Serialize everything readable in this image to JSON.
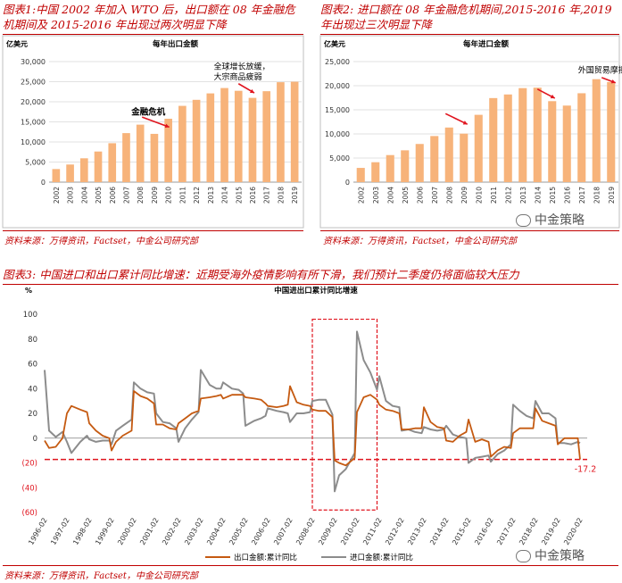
{
  "panels": {
    "p1": {
      "title": "图表1:中国 2002 年加入 WTO 后，出口额在 08 年金融危机期间及 2015-2016 年出现过两次明显下降",
      "title_line1": "图表1:中国 2002 年加入 WTO 后，出口额在 08 年金融危",
      "title_line2": "机期间及 2015-2016 年出现过两次明显下降",
      "source": "资料来源：万得资讯，Factset，中金公司研究部"
    },
    "p2": {
      "title_line1": "图表2: 进口额在 08 年金融危机期间,2015-2016 年,2019",
      "title_line2": "年出现过三次明显下降",
      "source": "资料来源：万得资讯，Factset，中金公司研究部"
    },
    "p3": {
      "title": "图表3: 中国进口和出口累计同比增速：近期受海外疫情影响有所下滑，我们预计二季度仍将面临较大压力",
      "source": "资料来源：万得资讯，Factset，中金公司研究部"
    }
  },
  "watermark": "中金策略",
  "colors": {
    "bar": "#f7b37a",
    "export_line": "#c55a11",
    "import_line": "#8c8c8c",
    "accent_red": "#e0141e",
    "title_red": "#c00000"
  },
  "chart_data": [
    {
      "type": "bar",
      "title": "每年出口金额",
      "ylabel": "亿美元",
      "categories": [
        "2002",
        "2003",
        "2004",
        "2005",
        "2006",
        "2007",
        "2008",
        "2009",
        "2010",
        "2011",
        "2012",
        "2013",
        "2014",
        "2015",
        "2016",
        "2017",
        "2018",
        "2019"
      ],
      "values": [
        3256,
        4382,
        5933,
        7620,
        9689,
        12200,
        14307,
        12016,
        15778,
        18984,
        20487,
        22090,
        23423,
        22735,
        20976,
        22634,
        24867,
        24990
      ],
      "ylim": [
        0,
        30000
      ],
      "yticks": [
        "0",
        "5,000",
        "10,000",
        "15,000",
        "20,000",
        "25,000",
        "30,000"
      ],
      "grid": true,
      "annotations": [
        {
          "text": "金融危机",
          "x": "2009"
        },
        {
          "text": "全球增长放缓，",
          "x": "2016"
        },
        {
          "text": "大宗商品疲弱",
          "x": "2016"
        }
      ]
    },
    {
      "type": "bar",
      "title": "每年进口金额",
      "ylabel": "亿美元",
      "categories": [
        "2002",
        "2003",
        "2004",
        "2005",
        "2006",
        "2007",
        "2008",
        "2009",
        "2010",
        "2011",
        "2012",
        "2013",
        "2014",
        "2015",
        "2016",
        "2017",
        "2018",
        "2019"
      ],
      "values": [
        2952,
        4128,
        5612,
        6600,
        7915,
        9561,
        11326,
        10059,
        13962,
        17435,
        18184,
        19500,
        19592,
        16796,
        15879,
        18438,
        21356,
        20769
      ],
      "ylim": [
        0,
        25000
      ],
      "yticks": [
        "0",
        "5,000",
        "10,000",
        "15,000",
        "20,000",
        "25,000"
      ],
      "grid": true,
      "annotations": [
        {
          "text": "外国贸易摩擦",
          "x": "2019"
        }
      ]
    },
    {
      "type": "line",
      "title": "中国进出口累计同比增速",
      "ylabel": "%",
      "ylim": [
        -60,
        100
      ],
      "yticks": [
        "100",
        "80",
        "60",
        "40",
        "20",
        "0",
        "(20)",
        "(40)",
        "(60)"
      ],
      "x_labels": [
        "1996-02",
        "1997-02",
        "1998-02",
        "1999-02",
        "2000-02",
        "2001-02",
        "2002-02",
        "2003-02",
        "2004-02",
        "2005-02",
        "2006-02",
        "2007-02",
        "2008-02",
        "2009-02",
        "2010-02",
        "2011-02",
        "2012-02",
        "2013-02",
        "2014-02",
        "2015-02",
        "2016-02",
        "2017-02",
        "2018-02",
        "2019-02",
        "2020-02"
      ],
      "x_start_year": 1996,
      "reference_line": -17.2,
      "reference_label": "-17.2",
      "series": [
        {
          "name": "出口金额:累计同比",
          "points": [
            [
              1996.0,
              -2
            ],
            [
              1996.2,
              -8
            ],
            [
              1996.5,
              -7
            ],
            [
              1996.8,
              0
            ],
            [
              1997.0,
              20
            ],
            [
              1997.2,
              26
            ],
            [
              1997.6,
              23
            ],
            [
              1997.9,
              21
            ],
            [
              1998.0,
              12
            ],
            [
              1998.3,
              6
            ],
            [
              1998.6,
              2
            ],
            [
              1998.9,
              0
            ],
            [
              1999.0,
              -10
            ],
            [
              1999.2,
              -3
            ],
            [
              1999.5,
              2
            ],
            [
              1999.9,
              6
            ],
            [
              2000.0,
              38
            ],
            [
              2000.3,
              34
            ],
            [
              2000.6,
              32
            ],
            [
              2000.9,
              28
            ],
            [
              2001.0,
              11
            ],
            [
              2001.3,
              11
            ],
            [
              2001.6,
              8
            ],
            [
              2001.9,
              7
            ],
            [
              2002.0,
              12
            ],
            [
              2002.3,
              16
            ],
            [
              2002.6,
              20
            ],
            [
              2002.9,
              22
            ],
            [
              2003.0,
              32
            ],
            [
              2003.4,
              33
            ],
            [
              2003.7,
              34
            ],
            [
              2003.9,
              35
            ],
            [
              2004.0,
              32
            ],
            [
              2004.4,
              35
            ],
            [
              2004.7,
              35
            ],
            [
              2004.9,
              35
            ],
            [
              2005.0,
              33
            ],
            [
              2005.4,
              32
            ],
            [
              2005.7,
              31
            ],
            [
              2005.9,
              28
            ],
            [
              2006.0,
              26
            ],
            [
              2006.4,
              25
            ],
            [
              2006.7,
              26
            ],
            [
              2006.9,
              27
            ],
            [
              2007.0,
              42
            ],
            [
              2007.3,
              29
            ],
            [
              2007.6,
              27
            ],
            [
              2007.9,
              26
            ],
            [
              2008.0,
              23
            ],
            [
              2008.3,
              22
            ],
            [
              2008.6,
              22
            ],
            [
              2008.9,
              17
            ],
            [
              2009.0,
              -18
            ],
            [
              2009.2,
              -20
            ],
            [
              2009.5,
              -22
            ],
            [
              2009.9,
              -16
            ],
            [
              2010.0,
              21
            ],
            [
              2010.3,
              33
            ],
            [
              2010.6,
              35
            ],
            [
              2010.9,
              31
            ],
            [
              2011.0,
              27
            ],
            [
              2011.3,
              23
            ],
            [
              2011.6,
              22
            ],
            [
              2011.9,
              20
            ],
            [
              2012.0,
              7
            ],
            [
              2012.3,
              7
            ],
            [
              2012.6,
              8
            ],
            [
              2012.9,
              8
            ],
            [
              2013.0,
              25
            ],
            [
              2013.3,
              13
            ],
            [
              2013.6,
              9
            ],
            [
              2013.9,
              8
            ],
            [
              2014.0,
              -2
            ],
            [
              2014.3,
              -3
            ],
            [
              2014.6,
              2
            ],
            [
              2014.9,
              5
            ],
            [
              2015.0,
              15
            ],
            [
              2015.3,
              -3
            ],
            [
              2015.6,
              -1
            ],
            [
              2015.9,
              -3
            ],
            [
              2016.0,
              -15
            ],
            [
              2016.3,
              -10
            ],
            [
              2016.6,
              -7
            ],
            [
              2016.9,
              -8
            ],
            [
              2017.0,
              4
            ],
            [
              2017.3,
              8
            ],
            [
              2017.6,
              8
            ],
            [
              2017.9,
              8
            ],
            [
              2018.0,
              24
            ],
            [
              2018.3,
              14
            ],
            [
              2018.6,
              12
            ],
            [
              2018.9,
              10
            ],
            [
              2019.0,
              -5
            ],
            [
              2019.3,
              0
            ],
            [
              2019.6,
              0
            ],
            [
              2019.9,
              0
            ],
            [
              2020.0,
              -17.2
            ]
          ]
        },
        {
          "name": "进口金额:累计同比",
          "points": [
            [
              1996.0,
              55
            ],
            [
              1996.2,
              6
            ],
            [
              1996.5,
              1
            ],
            [
              1996.8,
              5
            ],
            [
              1997.0,
              -3
            ],
            [
              1997.2,
              -12
            ],
            [
              1997.6,
              -3
            ],
            [
              1997.9,
              2
            ],
            [
              1998.0,
              -1
            ],
            [
              1998.3,
              -3
            ],
            [
              1998.6,
              -2
            ],
            [
              1998.9,
              -2
            ],
            [
              1999.0,
              -5
            ],
            [
              1999.2,
              6
            ],
            [
              1999.5,
              10
            ],
            [
              1999.9,
              15
            ],
            [
              2000.0,
              45
            ],
            [
              2000.3,
              40
            ],
            [
              2000.6,
              37
            ],
            [
              2000.9,
              36
            ],
            [
              2001.0,
              20
            ],
            [
              2001.3,
              13
            ],
            [
              2001.6,
              12
            ],
            [
              2001.9,
              8
            ],
            [
              2002.0,
              -3
            ],
            [
              2002.3,
              8
            ],
            [
              2002.6,
              15
            ],
            [
              2002.9,
              21
            ],
            [
              2003.0,
              55
            ],
            [
              2003.4,
              43
            ],
            [
              2003.7,
              40
            ],
            [
              2003.9,
              40
            ],
            [
              2004.0,
              45
            ],
            [
              2004.4,
              40
            ],
            [
              2004.7,
              39
            ],
            [
              2004.9,
              36
            ],
            [
              2005.0,
              10
            ],
            [
              2005.4,
              14
            ],
            [
              2005.7,
              16
            ],
            [
              2005.9,
              18
            ],
            [
              2006.0,
              24
            ],
            [
              2006.4,
              22
            ],
            [
              2006.7,
              21
            ],
            [
              2006.9,
              20
            ],
            [
              2007.0,
              13
            ],
            [
              2007.3,
              20
            ],
            [
              2007.6,
              20
            ],
            [
              2007.9,
              21
            ],
            [
              2008.0,
              30
            ],
            [
              2008.3,
              31
            ],
            [
              2008.6,
              31
            ],
            [
              2008.9,
              19
            ],
            [
              2009.0,
              -43
            ],
            [
              2009.2,
              -30
            ],
            [
              2009.5,
              -25
            ],
            [
              2009.9,
              -12
            ],
            [
              2010.0,
              86
            ],
            [
              2010.3,
              63
            ],
            [
              2010.6,
              53
            ],
            [
              2010.9,
              39
            ],
            [
              2011.0,
              50
            ],
            [
              2011.3,
              30
            ],
            [
              2011.6,
              26
            ],
            [
              2011.9,
              25
            ],
            [
              2012.0,
              6
            ],
            [
              2012.3,
              7
            ],
            [
              2012.6,
              5
            ],
            [
              2012.9,
              4
            ],
            [
              2013.0,
              9
            ],
            [
              2013.3,
              7
            ],
            [
              2013.6,
              6
            ],
            [
              2013.9,
              7
            ],
            [
              2014.0,
              10
            ],
            [
              2014.3,
              3
            ],
            [
              2014.6,
              1
            ],
            [
              2014.9,
              0
            ],
            [
              2015.0,
              -20
            ],
            [
              2015.3,
              -16
            ],
            [
              2015.6,
              -15
            ],
            [
              2015.9,
              -14
            ],
            [
              2016.0,
              -19
            ],
            [
              2016.3,
              -13
            ],
            [
              2016.6,
              -10
            ],
            [
              2016.9,
              -5
            ],
            [
              2017.0,
              27
            ],
            [
              2017.3,
              22
            ],
            [
              2017.6,
              18
            ],
            [
              2017.9,
              16
            ],
            [
              2018.0,
              30
            ],
            [
              2018.3,
              20
            ],
            [
              2018.6,
              20
            ],
            [
              2018.9,
              16
            ],
            [
              2019.0,
              -4
            ],
            [
              2019.3,
              -4
            ],
            [
              2019.6,
              -5
            ],
            [
              2019.9,
              -3
            ],
            [
              2020.0,
              -4
            ]
          ]
        }
      ]
    }
  ]
}
